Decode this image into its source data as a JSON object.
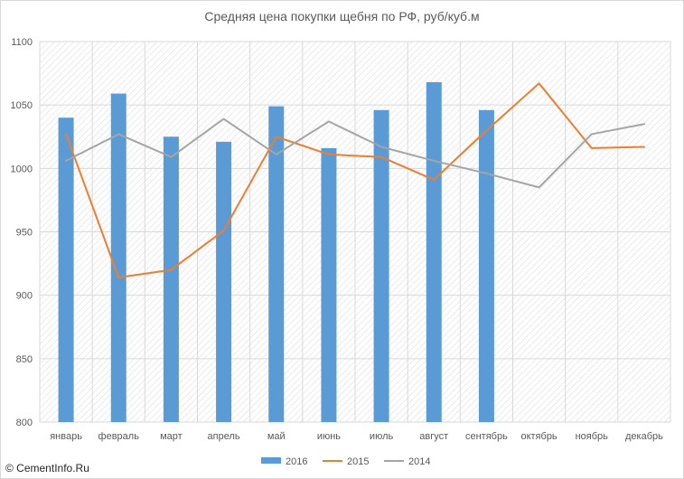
{
  "chart_data": {
    "type": "bar",
    "title": "Средняя цена покупки щебня по РФ, руб/куб.м",
    "categories": [
      "январь",
      "февраль",
      "март",
      "апрель",
      "май",
      "июнь",
      "июль",
      "август",
      "сентябрь",
      "октябрь",
      "ноябрь",
      "декабрь"
    ],
    "ylim": [
      800,
      1100
    ],
    "yticks": [
      800,
      850,
      900,
      950,
      1000,
      1050,
      1100
    ],
    "grid": true,
    "legend_position": "bottom",
    "series": [
      {
        "name": "2016",
        "type": "bar",
        "color": "#5b9bd5",
        "values": [
          1040,
          1059,
          1025,
          1021,
          1049,
          1016,
          1046,
          1068,
          1046,
          null,
          null,
          null
        ]
      },
      {
        "name": "2015",
        "type": "line",
        "color": "#ed7d31",
        "values": [
          1027,
          914,
          920,
          951,
          1025,
          1011,
          1009,
          991,
          1030,
          1067,
          1016,
          1017
        ]
      },
      {
        "name": "2014",
        "type": "line",
        "color": "#a5a5a5",
        "values": [
          1006,
          1027,
          1009,
          1039,
          1011,
          1037,
          1017,
          1006,
          996,
          985,
          1027,
          1035
        ]
      }
    ]
  },
  "watermark": "© CementInfo.Ru"
}
